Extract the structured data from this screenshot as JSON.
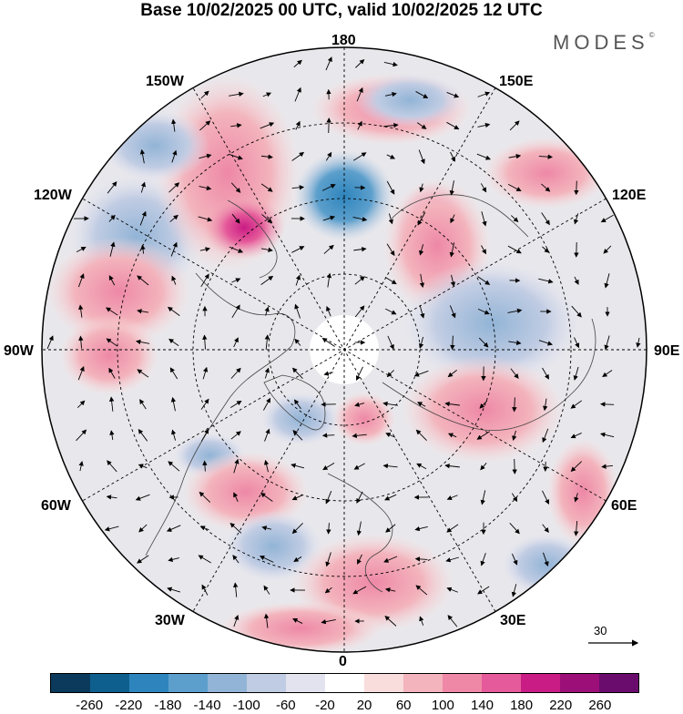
{
  "title": "Base 10/02/2025 00 UTC, valid 10/02/2025 12 UTC",
  "brand": "MODES",
  "brand_mark": "©",
  "longitude_labels": {
    "top": "180",
    "upper_left": "150W",
    "upper_right": "150E",
    "left_high": "120W",
    "right_high": "120E",
    "left": "90W",
    "right": "90E",
    "left_low": "60W",
    "right_low": "60E",
    "lower_left": "30W",
    "lower_right": "30E",
    "bottom": "0"
  },
  "wind_reference": {
    "value": "30"
  },
  "colorbar": {
    "ticks": [
      "-260",
      "-220",
      "-180",
      "-140",
      "-100",
      "-60",
      "-20",
      "20",
      "60",
      "100",
      "140",
      "180",
      "220",
      "260"
    ],
    "colors": [
      "#0b3a5c",
      "#0f5f8e",
      "#2e85bd",
      "#5c9fcc",
      "#92b4d6",
      "#c0cce3",
      "#e3e3f0",
      "#ffffff",
      "#f9dcdc",
      "#f3b4bd",
      "#ee88a6",
      "#e55a9a",
      "#c91c84",
      "#9d0f78",
      "#6a0c6d"
    ]
  },
  "colors": {
    "land_neutral": "#e8e8ec",
    "coast": "#444444",
    "grid": "#000000"
  }
}
